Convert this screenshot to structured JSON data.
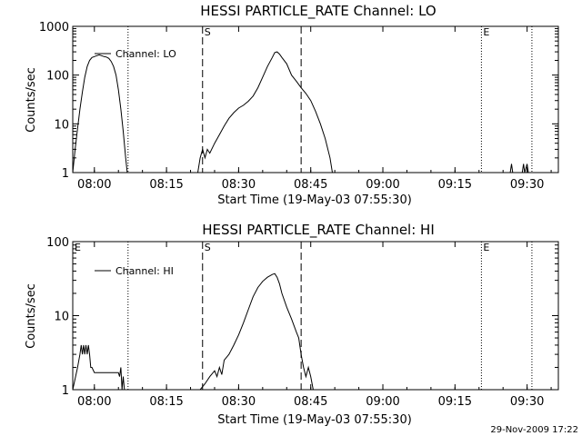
{
  "footer": {
    "timestamp": "29-Nov-2009 17:22"
  },
  "chart_data": [
    {
      "type": "line",
      "title": "HESSI PARTICLE_RATE Channel: LO",
      "xlabel": "Start Time (19-May-03 07:55:30)",
      "ylabel": "Counts/sec",
      "yscale": "log",
      "ylim": [
        1,
        1000
      ],
      "xlim": [
        "07:55:30",
        "09:36:30"
      ],
      "x_ticks": [
        "08:00",
        "08:15",
        "08:30",
        "08:45",
        "09:00",
        "09:15",
        "09:30"
      ],
      "y_ticks": [
        "1",
        "10",
        "100",
        "1000"
      ],
      "legend": {
        "label": "Channel: LO",
        "position": "top-left"
      },
      "flags": [
        {
          "label": "S",
          "time": "08:22:30"
        },
        {
          "label": "E",
          "time": "09:20:30"
        }
      ],
      "dashed_lines": [
        "08:22:30",
        "08:43:00"
      ],
      "dotted_lines": [
        "08:07:00",
        "09:20:30",
        "09:31:00"
      ],
      "series": [
        {
          "name": "Channel: LO",
          "points": [
            [
              "07:55:30",
              1
            ],
            [
              "07:56:00",
              3
            ],
            [
              "07:56:30",
              8
            ],
            [
              "07:57:00",
              20
            ],
            [
              "07:57:30",
              45
            ],
            [
              "07:58:00",
              90
            ],
            [
              "07:58:30",
              150
            ],
            [
              "07:59:00",
              200
            ],
            [
              "07:59:30",
              230
            ],
            [
              "08:00:00",
              240
            ],
            [
              "08:00:30",
              250
            ],
            [
              "08:01:00",
              260
            ],
            [
              "08:01:30",
              250
            ],
            [
              "08:02:00",
              240
            ],
            [
              "08:02:30",
              235
            ],
            [
              "08:03:00",
              220
            ],
            [
              "08:03:30",
              190
            ],
            [
              "08:04:00",
              150
            ],
            [
              "08:04:30",
              100
            ],
            [
              "08:05:00",
              50
            ],
            [
              "08:05:30",
              20
            ],
            [
              "08:06:00",
              7
            ],
            [
              "08:06:30",
              2
            ],
            [
              "08:06:50",
              1
            ],
            null,
            [
              "08:21:30",
              1
            ],
            [
              "08:22:00",
              2
            ],
            [
              "08:22:30",
              3
            ],
            [
              "08:23:00",
              2
            ],
            [
              "08:23:30",
              3
            ],
            [
              "08:24:00",
              2.5
            ],
            [
              "08:25:00",
              4
            ],
            [
              "08:26:00",
              6
            ],
            [
              "08:27:00",
              9
            ],
            [
              "08:28:00",
              13
            ],
            [
              "08:29:00",
              17
            ],
            [
              "08:30:00",
              21
            ],
            [
              "08:31:00",
              24
            ],
            [
              "08:32:00",
              29
            ],
            [
              "08:33:00",
              37
            ],
            [
              "08:34:00",
              55
            ],
            [
              "08:35:00",
              90
            ],
            [
              "08:36:00",
              150
            ],
            [
              "08:37:00",
              230
            ],
            [
              "08:37:30",
              290
            ],
            [
              "08:38:00",
              300
            ],
            [
              "08:38:30",
              270
            ],
            [
              "08:39:00",
              230
            ],
            [
              "08:40:00",
              170
            ],
            [
              "08:41:00",
              100
            ],
            [
              "08:42:00",
              75
            ],
            [
              "08:43:00",
              55
            ],
            [
              "08:44:00",
              42
            ],
            [
              "08:45:00",
              30
            ],
            [
              "08:46:00",
              18
            ],
            [
              "08:47:00",
              10
            ],
            [
              "08:48:00",
              5
            ],
            [
              "08:49:00",
              2
            ],
            [
              "08:49:30",
              1
            ],
            null,
            [
              "09:26:30",
              1
            ],
            [
              "09:26:45",
              1.5
            ],
            [
              "09:27:00",
              1
            ],
            null,
            [
              "09:29:00",
              1
            ],
            [
              "09:29:15",
              1.5
            ],
            [
              "09:29:30",
              1
            ],
            [
              "09:30:00",
              1.5
            ],
            [
              "09:30:15",
              1
            ]
          ]
        }
      ]
    },
    {
      "type": "line",
      "title": "HESSI PARTICLE_RATE Channel: HI",
      "xlabel": "Start Time (19-May-03 07:55:30)",
      "ylabel": "Counts/sec",
      "yscale": "log",
      "ylim": [
        1,
        100
      ],
      "xlim": [
        "07:55:30",
        "09:36:30"
      ],
      "x_ticks": [
        "08:00",
        "08:15",
        "08:30",
        "08:45",
        "09:00",
        "09:15",
        "09:30"
      ],
      "y_ticks": [
        "1",
        "10",
        "100"
      ],
      "legend": {
        "label": "Channel: HI",
        "position": "top-left"
      },
      "flags": [
        {
          "label": "E",
          "time": "07:55:30"
        },
        {
          "label": "S",
          "time": "08:22:30"
        },
        {
          "label": "E",
          "time": "09:20:30"
        }
      ],
      "dashed_lines": [
        "08:22:30",
        "08:43:00"
      ],
      "dotted_lines": [
        "08:07:00",
        "09:20:30",
        "09:31:00"
      ],
      "series": [
        {
          "name": "Channel: HI",
          "points": [
            [
              "07:55:30",
              1
            ],
            [
              "07:56:30",
              2
            ],
            [
              "07:57:00",
              3
            ],
            [
              "07:57:15",
              4
            ],
            [
              "07:57:30",
              3
            ],
            [
              "07:57:45",
              4
            ],
            [
              "07:58:00",
              3
            ],
            [
              "07:58:15",
              4
            ],
            [
              "07:58:30",
              3
            ],
            [
              "07:58:45",
              4
            ],
            [
              "07:59:00",
              3
            ],
            [
              "07:59:15",
              2
            ],
            [
              "07:59:30",
              2
            ],
            [
              "08:00:00",
              1.7
            ],
            [
              "08:05:00",
              1.7
            ],
            [
              "08:05:15",
              1.5
            ],
            [
              "08:05:30",
              2
            ],
            [
              "08:05:45",
              1
            ],
            [
              "08:06:00",
              1.5
            ],
            [
              "08:06:15",
              1
            ],
            null,
            [
              "08:22:00",
              1
            ],
            [
              "08:23:00",
              1.2
            ],
            [
              "08:24:00",
              1.5
            ],
            [
              "08:25:00",
              1.8
            ],
            [
              "08:25:30",
              1.5
            ],
            [
              "08:26:00",
              2
            ],
            [
              "08:26:30",
              1.6
            ],
            [
              "08:27:00",
              2.5
            ],
            [
              "08:28:00",
              3
            ],
            [
              "08:29:00",
              4
            ],
            [
              "08:30:00",
              5.5
            ],
            [
              "08:31:00",
              8
            ],
            [
              "08:32:00",
              12
            ],
            [
              "08:33:00",
              18
            ],
            [
              "08:34:00",
              24
            ],
            [
              "08:35:00",
              29
            ],
            [
              "08:36:00",
              33
            ],
            [
              "08:37:00",
              36
            ],
            [
              "08:37:30",
              37
            ],
            [
              "08:38:00",
              33
            ],
            [
              "08:38:30",
              27
            ],
            [
              "08:39:00",
              20
            ],
            [
              "08:40:00",
              13
            ],
            [
              "08:41:00",
              9
            ],
            [
              "08:42:00",
              6
            ],
            [
              "08:42:30",
              5
            ],
            [
              "08:43:00",
              3
            ],
            [
              "08:43:30",
              2
            ],
            [
              "08:44:00",
              1.5
            ],
            [
              "08:44:30",
              2
            ],
            [
              "08:45:00",
              1.5
            ],
            [
              "08:45:30",
              1
            ]
          ]
        }
      ]
    }
  ]
}
